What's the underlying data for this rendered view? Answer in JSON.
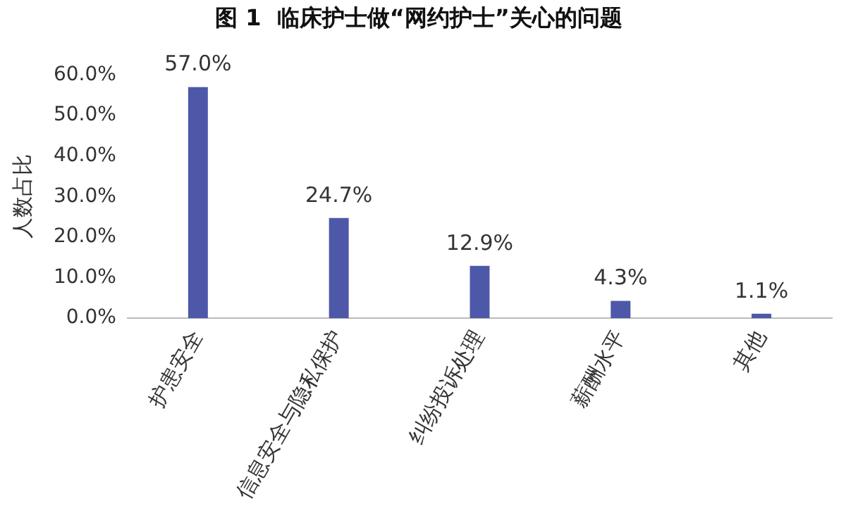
{
  "chart_data": {
    "type": "bar",
    "title": "图 1  临床护士做“网约护士”关心的问题",
    "ylabel": "人数占比",
    "categories": [
      "护患安全",
      "信息安全与隐私保护",
      "纠纷投诉处理",
      "薪酬水平",
      "其他"
    ],
    "values": [
      57.0,
      24.7,
      12.9,
      4.3,
      1.1
    ],
    "value_labels": [
      "57.0%",
      "24.7%",
      "12.9%",
      "4.3%",
      "1.1%"
    ],
    "color": "#4e58a8",
    "ylim": [
      0,
      60
    ],
    "yticks": [
      {
        "value": 0,
        "label": "0.0%"
      },
      {
        "value": 10,
        "label": "10.0%"
      },
      {
        "value": 20,
        "label": "20.0%"
      },
      {
        "value": 30,
        "label": "30.0%"
      },
      {
        "value": 40,
        "label": "40.0%"
      },
      {
        "value": 50,
        "label": "50.0%"
      },
      {
        "value": 60,
        "label": "60.0%"
      }
    ],
    "grid": false,
    "legend": false
  }
}
